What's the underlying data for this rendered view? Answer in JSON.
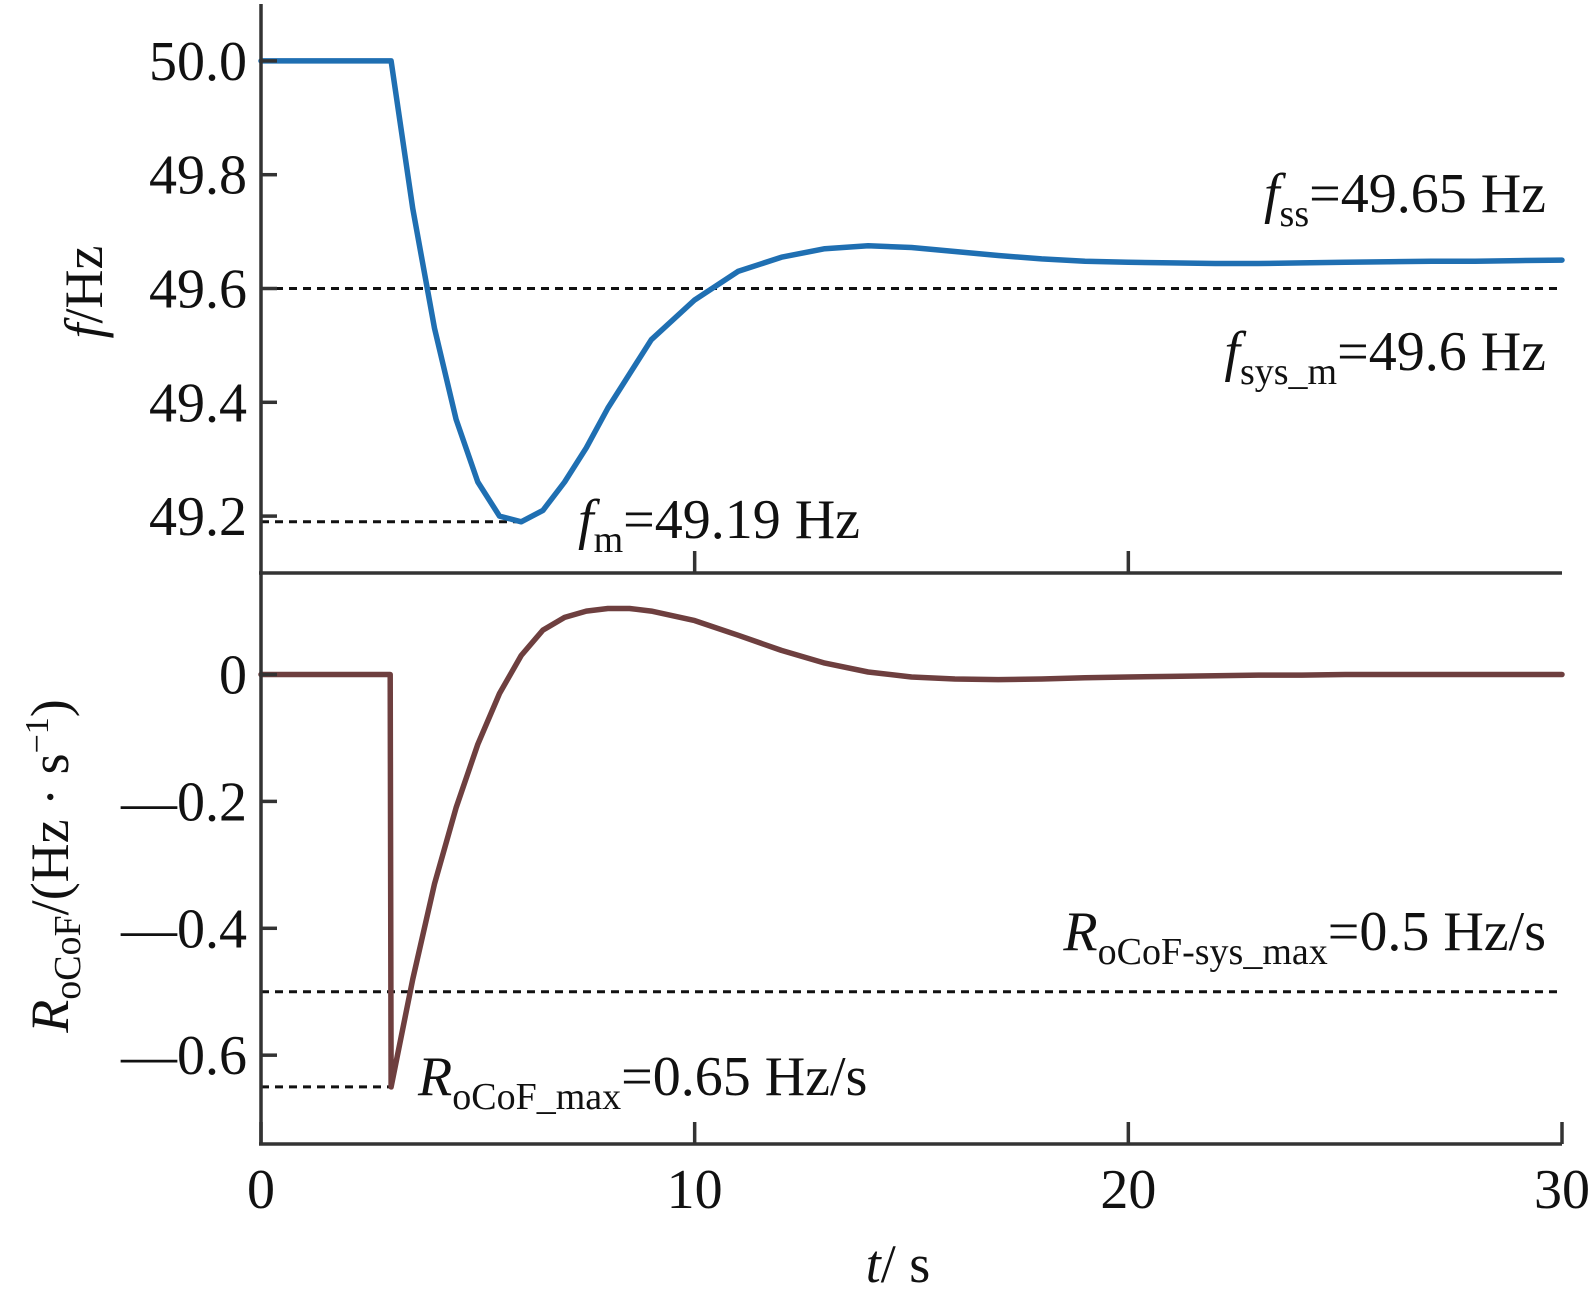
{
  "chart_data": [
    {
      "type": "line",
      "panel": "top",
      "ylabel_symbol": "f",
      "ylabel_unit": "/Hz",
      "ylim": [
        49.1,
        50.1
      ],
      "yticks": [
        50.0,
        49.8,
        49.6,
        49.4,
        49.2
      ],
      "ytick_labels": [
        "50.0",
        "49.8",
        "49.6",
        "49.4",
        "49.2"
      ],
      "xlim": [
        0,
        30
      ],
      "xticks": [
        10,
        20
      ],
      "grid": false,
      "color": "#1f6fb2",
      "series": [
        {
          "x": [
            0,
            3,
            3.5,
            4,
            4.5,
            5,
            5.5,
            6,
            6.5,
            7,
            7.5,
            8,
            9,
            10,
            11,
            12,
            13,
            14,
            15,
            16,
            17,
            18,
            19,
            20,
            21,
            22,
            23,
            24,
            25,
            26,
            27,
            28,
            29,
            30
          ],
          "y": [
            50.0,
            50.0,
            49.74,
            49.53,
            49.37,
            49.26,
            49.2,
            49.19,
            49.21,
            49.26,
            49.32,
            49.39,
            49.51,
            49.58,
            49.63,
            49.655,
            49.67,
            49.675,
            49.672,
            49.665,
            49.658,
            49.652,
            49.648,
            49.646,
            49.645,
            49.644,
            49.644,
            49.645,
            49.646,
            49.647,
            49.648,
            49.648,
            49.649,
            49.65
          ]
        }
      ],
      "ref_lines": [
        {
          "y": 49.6,
          "x_from": 0,
          "x_to": 30
        },
        {
          "y": 49.19,
          "x_from": 0,
          "x_to": 6.0
        }
      ],
      "annotations": {
        "fss": {
          "symbol": "f",
          "sub": "ss",
          "text": "=49.65 Hz"
        },
        "fsys": {
          "symbol": "f",
          "sub": "sys_m",
          "text": "=49.6 Hz"
        },
        "fm": {
          "symbol": "f",
          "sub": "m",
          "text": "=49.19 Hz"
        }
      }
    },
    {
      "type": "line",
      "panel": "bottom",
      "ylabel_symbol": "R",
      "ylabel_sub": "oCoF",
      "ylabel_unit_pre": "/(Hz · s",
      "ylabel_sup": "−1",
      "ylabel_unit_post": ")",
      "ylim": [
        -0.74,
        0.16
      ],
      "yticks": [
        0,
        -0.2,
        -0.4,
        -0.6
      ],
      "ytick_labels": [
        "0",
        "—0.2",
        "—0.4",
        "—0.6"
      ],
      "xlim": [
        0,
        30
      ],
      "xticks": [
        0,
        10,
        20,
        30
      ],
      "xtick_labels": [
        "0",
        "10",
        "20",
        "30"
      ],
      "xlabel_symbol": "t",
      "xlabel_unit": "/ s",
      "grid": false,
      "color": "#6e3f3f",
      "series": [
        {
          "x": [
            0,
            2.98,
            3.0,
            3.5,
            4,
            4.5,
            5,
            5.5,
            6,
            6.5,
            7,
            7.5,
            8,
            8.5,
            9,
            10,
            11,
            12,
            13,
            14,
            15,
            16,
            17,
            18,
            19,
            20,
            21,
            22,
            23,
            24,
            25,
            26,
            27,
            28,
            29,
            30
          ],
          "y": [
            0,
            0,
            -0.65,
            -0.48,
            -0.33,
            -0.21,
            -0.11,
            -0.03,
            0.03,
            0.07,
            0.09,
            0.1,
            0.104,
            0.104,
            0.1,
            0.085,
            0.062,
            0.038,
            0.018,
            0.004,
            -0.004,
            -0.007,
            -0.008,
            -0.007,
            -0.005,
            -0.004,
            -0.003,
            -0.002,
            -0.001,
            -0.001,
            0,
            0,
            0,
            0,
            0,
            0
          ]
        }
      ],
      "ref_lines": [
        {
          "y": -0.5,
          "x_from": 0,
          "x_to": 30
        },
        {
          "y": -0.65,
          "x_from": 0,
          "x_to": 3.0
        }
      ],
      "annotations": {
        "rsys": {
          "symbol": "R",
          "sub": "oCoF-sys_max",
          "text": "=0.5 Hz/s"
        },
        "rmax": {
          "symbol": "R",
          "sub": "oCoF_max",
          "text": "=0.65 Hz/s"
        }
      }
    }
  ]
}
